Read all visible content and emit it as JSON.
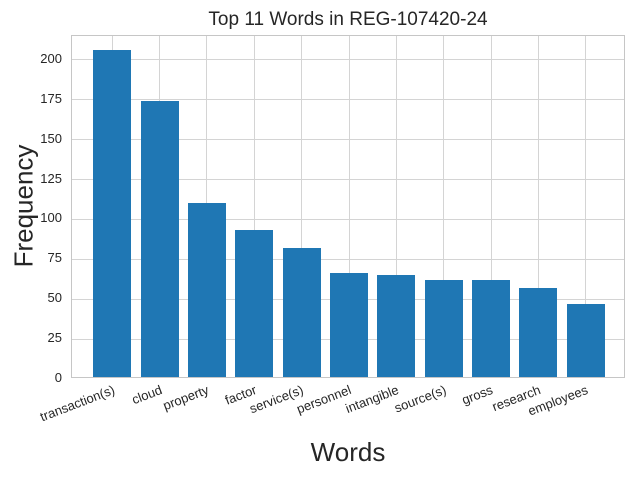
{
  "chart_data": {
    "type": "bar",
    "title": "Top 11 Words in REG-107420-24",
    "xlabel": "Words",
    "ylabel": "Frequency",
    "categories": [
      "transaction(s)",
      "cloud",
      "property",
      "factor",
      "service(s)",
      "personnel",
      "intangible",
      "source(s)",
      "gross",
      "research",
      "employees"
    ],
    "values": [
      205,
      173,
      109,
      92,
      81,
      65,
      64,
      61,
      61,
      56,
      46
    ],
    "yticks": [
      0,
      25,
      50,
      75,
      100,
      125,
      150,
      175,
      200
    ],
    "ylim": [
      0,
      215
    ],
    "grid": true,
    "legend": false,
    "colors": {
      "bar": "#1f77b4",
      "grid": "#d4d4d4",
      "border": "#c6c6c6",
      "text": "#262626",
      "background": "#ffffff"
    }
  }
}
